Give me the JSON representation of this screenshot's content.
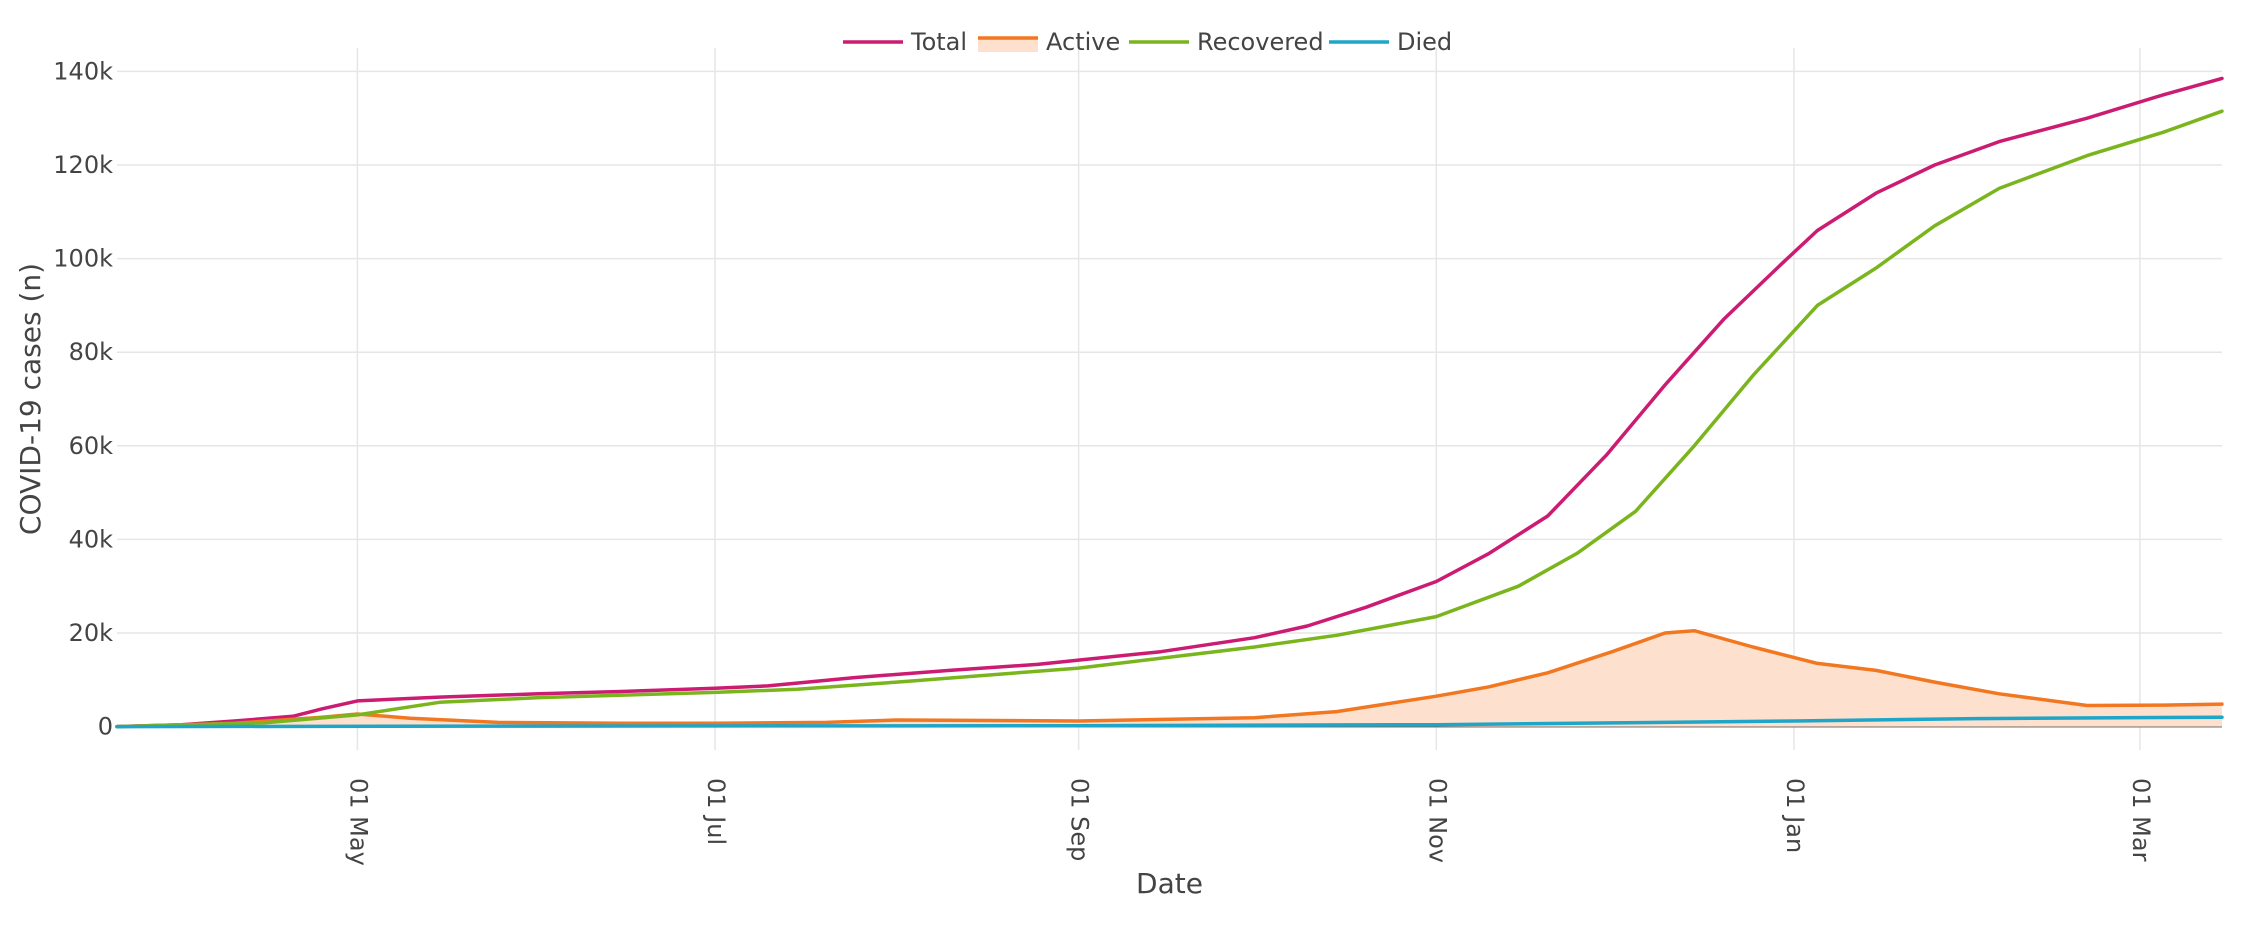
{
  "chart_data": {
    "type": "line",
    "title": "",
    "xlabel": "Date",
    "ylabel": "COVID-19 cases (n)",
    "x_axis": {
      "type": "date",
      "range": [
        "2020-03-21",
        "2021-03-15"
      ],
      "ticks": [
        {
          "date": "2020-05-01",
          "label": "01 May"
        },
        {
          "date": "2020-07-01",
          "label": "01 Jul"
        },
        {
          "date": "2020-09-01",
          "label": "01 Sep"
        },
        {
          "date": "2020-11-01",
          "label": "01 Nov"
        },
        {
          "date": "2021-01-01",
          "label": "01 Jan"
        },
        {
          "date": "2021-03-01",
          "label": "01 Mar"
        }
      ]
    },
    "y_axis": {
      "range": [
        -5000,
        145000
      ],
      "ticks": [
        {
          "value": 0,
          "label": "0"
        },
        {
          "value": 20000,
          "label": "20k"
        },
        {
          "value": 40000,
          "label": "40k"
        },
        {
          "value": 60000,
          "label": "60k"
        },
        {
          "value": 80000,
          "label": "80k"
        },
        {
          "value": 100000,
          "label": "100k"
        },
        {
          "value": 120000,
          "label": "120k"
        },
        {
          "value": 140000,
          "label": "140k"
        }
      ]
    },
    "grid": true,
    "legend": {
      "placement": "top-center",
      "orientation": "horizontal"
    },
    "series": [
      {
        "name": "Total",
        "color": "#cc1b72",
        "fill": false,
        "points": [
          [
            "2020-03-21",
            0
          ],
          [
            "2020-04-01",
            400
          ],
          [
            "2020-04-10",
            1200
          ],
          [
            "2020-04-20",
            2200
          ],
          [
            "2020-04-25",
            3800
          ],
          [
            "2020-05-01",
            5500
          ],
          [
            "2020-05-15",
            6300
          ],
          [
            "2020-06-01",
            7000
          ],
          [
            "2020-06-15",
            7500
          ],
          [
            "2020-07-01",
            8200
          ],
          [
            "2020-07-10",
            8700
          ],
          [
            "2020-07-25",
            10500
          ],
          [
            "2020-08-10",
            12000
          ],
          [
            "2020-08-25",
            13300
          ],
          [
            "2020-09-01",
            14200
          ],
          [
            "2020-09-15",
            16000
          ],
          [
            "2020-10-01",
            19000
          ],
          [
            "2020-10-10",
            21500
          ],
          [
            "2020-10-20",
            25500
          ],
          [
            "2020-11-01",
            31000
          ],
          [
            "2020-11-10",
            37000
          ],
          [
            "2020-11-20",
            45000
          ],
          [
            "2020-11-30",
            58000
          ],
          [
            "2020-12-10",
            73000
          ],
          [
            "2020-12-20",
            87000
          ],
          [
            "2020-12-30",
            99000
          ],
          [
            "2021-01-05",
            106000
          ],
          [
            "2021-01-15",
            114000
          ],
          [
            "2021-01-25",
            120000
          ],
          [
            "2021-02-05",
            125000
          ],
          [
            "2021-02-20",
            130000
          ],
          [
            "2021-03-05",
            135000
          ],
          [
            "2021-03-15",
            138500
          ]
        ]
      },
      {
        "name": "Active",
        "color": "#f27721",
        "fill": true,
        "fill_color": "#fde0cd",
        "points": [
          [
            "2020-03-21",
            0
          ],
          [
            "2020-04-10",
            700
          ],
          [
            "2020-04-25",
            2000
          ],
          [
            "2020-05-01",
            2700
          ],
          [
            "2020-05-10",
            1800
          ],
          [
            "2020-05-25",
            900
          ],
          [
            "2020-06-15",
            700
          ],
          [
            "2020-07-01",
            700
          ],
          [
            "2020-07-20",
            900
          ],
          [
            "2020-08-01",
            1400
          ],
          [
            "2020-09-01",
            1200
          ],
          [
            "2020-10-01",
            1900
          ],
          [
            "2020-10-15",
            3200
          ],
          [
            "2020-11-01",
            6500
          ],
          [
            "2020-11-10",
            8500
          ],
          [
            "2020-11-20",
            11500
          ],
          [
            "2020-12-01",
            16000
          ],
          [
            "2020-12-10",
            20000
          ],
          [
            "2020-12-15",
            20500
          ],
          [
            "2020-12-25",
            17000
          ],
          [
            "2021-01-05",
            13500
          ],
          [
            "2021-01-15",
            12000
          ],
          [
            "2021-01-25",
            9500
          ],
          [
            "2021-02-05",
            7000
          ],
          [
            "2021-02-20",
            4500
          ],
          [
            "2021-03-05",
            4600
          ],
          [
            "2021-03-15",
            4800
          ]
        ]
      },
      {
        "name": "Recovered",
        "color": "#7ab51d",
        "fill": false,
        "points": [
          [
            "2020-03-21",
            0
          ],
          [
            "2020-04-15",
            800
          ],
          [
            "2020-05-01",
            2500
          ],
          [
            "2020-05-15",
            5200
          ],
          [
            "2020-06-01",
            6200
          ],
          [
            "2020-07-01",
            7300
          ],
          [
            "2020-07-15",
            8000
          ],
          [
            "2020-08-01",
            9500
          ],
          [
            "2020-09-01",
            12500
          ],
          [
            "2020-10-01",
            17000
          ],
          [
            "2020-10-15",
            19500
          ],
          [
            "2020-11-01",
            23500
          ],
          [
            "2020-11-15",
            30000
          ],
          [
            "2020-11-25",
            37000
          ],
          [
            "2020-12-05",
            46000
          ],
          [
            "2020-12-15",
            60000
          ],
          [
            "2020-12-25",
            75000
          ],
          [
            "2021-01-05",
            90000
          ],
          [
            "2021-01-15",
            98000
          ],
          [
            "2021-01-25",
            107000
          ],
          [
            "2021-02-05",
            115000
          ],
          [
            "2021-02-20",
            122000
          ],
          [
            "2021-03-05",
            127000
          ],
          [
            "2021-03-15",
            131500
          ]
        ]
      },
      {
        "name": "Died",
        "color": "#1fa5c8",
        "fill": false,
        "points": [
          [
            "2020-03-21",
            0
          ],
          [
            "2020-06-01",
            100
          ],
          [
            "2020-09-01",
            200
          ],
          [
            "2020-11-01",
            400
          ],
          [
            "2020-12-01",
            800
          ],
          [
            "2021-01-01",
            1200
          ],
          [
            "2021-02-01",
            1700
          ],
          [
            "2021-03-15",
            2000
          ]
        ]
      }
    ]
  }
}
